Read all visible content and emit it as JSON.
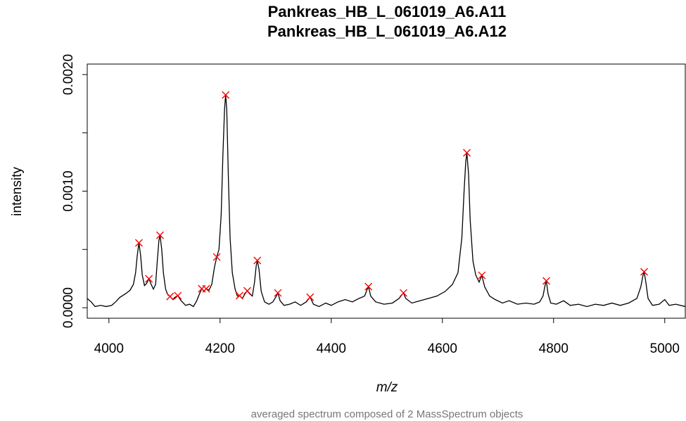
{
  "chart_data": {
    "type": "line",
    "title": [
      "Pankreas_HB_L_061019_A6.A11",
      "Pankreas_HB_L_061019_A6.A12"
    ],
    "xlabel": "m/z",
    "ylabel": "intensity",
    "subtitle": "averaged spectrum composed of 2 MassSpectrum objects",
    "color": "#000000",
    "x": [
      3961,
      3968,
      3975,
      3985,
      3995,
      4005,
      4012,
      4020,
      4030,
      4038,
      4044,
      4048,
      4051,
      4054,
      4057,
      4060,
      4064,
      4068,
      4072,
      4076,
      4080,
      4084,
      4087,
      4090,
      4092,
      4095,
      4098,
      4102,
      4106,
      4110,
      4115,
      4119,
      4124,
      4130,
      4138,
      4145,
      4152,
      4158,
      4163,
      4167,
      4171,
      4175,
      4180,
      4185,
      4190,
      4194,
      4198,
      4202,
      4205,
      4208,
      4210,
      4212,
      4215,
      4218,
      4222,
      4227,
      4231,
      4235,
      4240,
      4245,
      4249,
      4253,
      4258,
      4262,
      4265,
      4267,
      4270,
      4274,
      4280,
      4288,
      4295,
      4300,
      4304,
      4308,
      4315,
      4325,
      4335,
      4345,
      4355,
      4362,
      4368,
      4378,
      4390,
      4400,
      4412,
      4425,
      4438,
      4450,
      4460,
      4464,
      4467,
      4471,
      4480,
      4495,
      4510,
      4522,
      4527,
      4530,
      4534,
      4545,
      4560,
      4575,
      4590,
      4605,
      4618,
      4628,
      4635,
      4639,
      4642,
      4644,
      4647,
      4650,
      4655,
      4660,
      4666,
      4671,
      4676,
      4685,
      4695,
      4708,
      4720,
      4735,
      4750,
      4765,
      4775,
      4781,
      4785,
      4787,
      4790,
      4795,
      4805,
      4818,
      4830,
      4845,
      4860,
      4875,
      4890,
      4905,
      4920,
      4935,
      4950,
      4957,
      4961,
      4963,
      4966,
      4970,
      4978,
      4990,
      5000,
      5008,
      5020,
      5037
    ],
    "values": [
      8e-05,
      5e-05,
      1e-05,
      2e-05,
      1e-05,
      2e-05,
      5e-05,
      9e-05,
      0.00012,
      0.00015,
      0.0002,
      0.0003,
      0.00045,
      0.000556,
      0.00045,
      0.00028,
      0.00019,
      0.00021,
      0.000248,
      0.0002,
      0.00016,
      0.0002,
      0.0004,
      0.00058,
      0.000622,
      0.0005,
      0.0003,
      0.00016,
      0.00011,
      9.67e-05,
      7e-05,
      9e-05,
      0.000103,
      6e-05,
      2e-05,
      3e-05,
      1e-05,
      6e-05,
      0.00012,
      0.000163,
      0.00014,
      0.000163,
      0.00015,
      0.0002,
      0.00035,
      0.000435,
      0.0005,
      0.0008,
      0.0013,
      0.0017,
      0.001825,
      0.0017,
      0.0011,
      0.0006,
      0.0003,
      0.00016,
      0.0001,
      0.000103,
      8e-05,
      0.00012,
      0.000145,
      0.00012,
      0.0001,
      0.00022,
      0.00036,
      0.000405,
      0.00033,
      0.00014,
      5e-05,
      3e-05,
      5e-05,
      9e-05,
      0.000127,
      6e-05,
      2e-05,
      3e-05,
      5e-05,
      2e-05,
      5e-05,
      9.06e-05,
      3e-05,
      1e-05,
      4e-05,
      2e-05,
      5e-05,
      7e-05,
      5e-05,
      8e-05,
      0.0001,
      0.00015,
      0.000181,
      0.0001,
      5e-05,
      3e-05,
      4e-05,
      8e-05,
      0.00011,
      0.000127,
      8e-05,
      4e-05,
      6e-05,
      8e-05,
      0.0001,
      0.00014,
      0.0002,
      0.0003,
      0.0006,
      0.001,
      0.00125,
      0.001329,
      0.00115,
      0.00075,
      0.0004,
      0.00028,
      0.00022,
      0.000278,
      0.00018,
      0.0001,
      7e-05,
      4e-05,
      6e-05,
      3e-05,
      4e-05,
      3e-05,
      5e-05,
      0.0001,
      0.0002,
      0.00023,
      0.00012,
      4e-05,
      3e-05,
      6e-05,
      2e-05,
      3e-05,
      1e-05,
      3e-05,
      2e-05,
      4e-05,
      2e-05,
      4e-05,
      8e-05,
      0.00018,
      0.00028,
      0.000308,
      0.00022,
      8e-05,
      2e-05,
      3e-05,
      7e-05,
      2e-05,
      3e-05,
      1e-05
    ],
    "peaks": {
      "color": "#ff0000",
      "x": [
        4054,
        4072,
        4092,
        4110,
        4124,
        4167,
        4175,
        4194,
        4210,
        4235,
        4249,
        4267,
        4304,
        4362,
        4467,
        4530,
        4644,
        4671,
        4787,
        4963
      ],
      "values": [
        0.000556,
        0.000248,
        0.000622,
        9.67e-05,
        0.000103,
        0.000163,
        0.000163,
        0.000435,
        0.001825,
        0.000103,
        0.000145,
        0.000405,
        0.000127,
        9.06e-05,
        0.000181,
        0.000127,
        0.001329,
        0.000278,
        0.00023,
        0.000308
      ]
    },
    "xlim": [
      3961,
      5037
    ],
    "ylim": [
      -9e-05,
      0.00209
    ],
    "xticks": [
      4000,
      4200,
      4400,
      4600,
      4800,
      5000
    ],
    "yticks": [
      {
        "value": 0,
        "label": "0.0000"
      },
      {
        "value": 0.001,
        "label": "0.0010"
      },
      {
        "value": 0.002,
        "label": "0.0020"
      }
    ],
    "yminorticks": [
      0.0005,
      0.0015
    ],
    "grid": false
  }
}
